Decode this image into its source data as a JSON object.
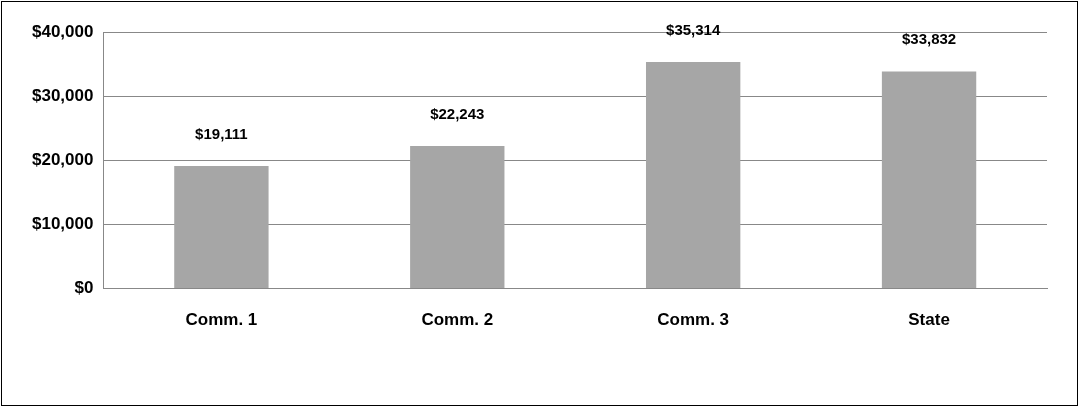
{
  "chart_data": {
    "type": "bar",
    "categories": [
      "Comm. 1",
      "Comm. 2",
      "Comm. 3",
      "State"
    ],
    "values": [
      19111,
      22243,
      35314,
      33832
    ],
    "value_labels": [
      "$19,111",
      "$22,243",
      "$35,314",
      "$33,832"
    ],
    "color": "#a6a6a6",
    "ylim": [
      0,
      40000
    ],
    "yticks": [
      {
        "value": 0,
        "label": "$0"
      },
      {
        "value": 10000,
        "label": "$10,000"
      },
      {
        "value": 20000,
        "label": "$20,000"
      },
      {
        "value": 30000,
        "label": "$30,000"
      },
      {
        "value": 40000,
        "label": "$40,000"
      }
    ],
    "grid": "y",
    "legend": false
  }
}
